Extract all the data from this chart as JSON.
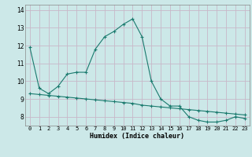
{
  "xlabel": "Humidex (Indice chaleur)",
  "bg_color": "#cce8e8",
  "grid_major_color": "#c8b8c8",
  "grid_minor_color": "#ddd0dd",
  "line_color": "#1a7a6e",
  "x_values": [
    0,
    1,
    2,
    3,
    4,
    5,
    6,
    7,
    8,
    9,
    10,
    11,
    12,
    13,
    14,
    15,
    16,
    17,
    18,
    19,
    20,
    21,
    22,
    23
  ],
  "series1": [
    11.9,
    9.6,
    9.3,
    9.7,
    10.4,
    10.5,
    10.5,
    11.8,
    12.5,
    12.8,
    13.2,
    13.5,
    12.5,
    10.0,
    9.0,
    8.6,
    8.6,
    8.0,
    7.8,
    7.7,
    7.7,
    7.8,
    8.0,
    7.9
  ],
  "series2": [
    9.3,
    9.25,
    9.2,
    9.15,
    9.1,
    9.05,
    9.0,
    8.95,
    8.9,
    8.85,
    8.8,
    8.75,
    8.65,
    8.6,
    8.55,
    8.5,
    8.45,
    8.4,
    8.35,
    8.3,
    8.25,
    8.2,
    8.15,
    8.1
  ],
  "ylim": [
    7.5,
    14.3
  ],
  "xlim": [
    -0.5,
    23.5
  ],
  "yticks": [
    8,
    9,
    10,
    11,
    12,
    13,
    14
  ],
  "xticks": [
    0,
    1,
    2,
    3,
    4,
    5,
    6,
    7,
    8,
    9,
    10,
    11,
    12,
    13,
    14,
    15,
    16,
    17,
    18,
    19,
    20,
    21,
    22,
    23
  ]
}
